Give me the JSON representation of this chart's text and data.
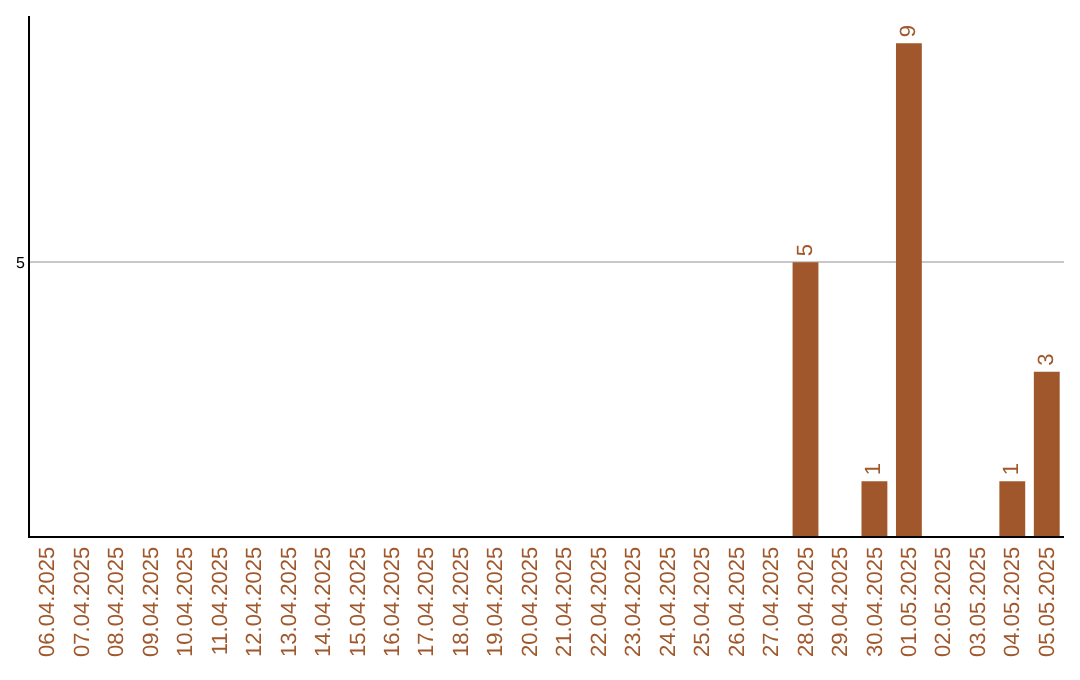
{
  "chart_data": {
    "type": "bar",
    "categories": [
      "06.04.2025",
      "07.04.2025",
      "08.04.2025",
      "09.04.2025",
      "10.04.2025",
      "11.04.2025",
      "12.04.2025",
      "13.04.2025",
      "14.04.2025",
      "15.04.2025",
      "16.04.2025",
      "17.04.2025",
      "18.04.2025",
      "19.04.2025",
      "20.04.2025",
      "21.04.2025",
      "22.04.2025",
      "23.04.2025",
      "24.04.2025",
      "25.04.2025",
      "26.04.2025",
      "27.04.2025",
      "28.04.2025",
      "29.04.2025",
      "30.04.2025",
      "01.05.2025",
      "02.05.2025",
      "03.05.2025",
      "04.05.2025",
      "05.05.2025"
    ],
    "values": [
      null,
      null,
      null,
      null,
      null,
      null,
      null,
      null,
      null,
      null,
      null,
      null,
      null,
      null,
      null,
      null,
      null,
      null,
      null,
      null,
      null,
      null,
      5,
      null,
      1,
      9,
      null,
      null,
      1,
      3
    ],
    "color": "#a0572b",
    "ylim": [
      0,
      9.5
    ],
    "yticks": [
      5
    ],
    "grid": "y",
    "data_labels": true,
    "legend": false
  }
}
